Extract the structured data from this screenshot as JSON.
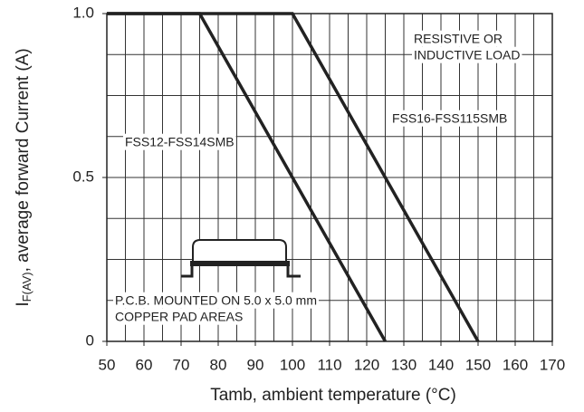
{
  "chart_data": {
    "type": "line",
    "xlabel": "Tamb, ambient temperature (°C)",
    "ylabel": [
      "I",
      "F(AV)",
      ", average forward Current (A)"
    ],
    "xlim": [
      50,
      170
    ],
    "ylim": [
      0,
      1
    ],
    "xticks": [
      50,
      60,
      70,
      80,
      90,
      100,
      110,
      120,
      130,
      140,
      150,
      160,
      170
    ],
    "yticks": [
      0,
      0.5,
      {
        "value": 1,
        "label": "1.0"
      }
    ],
    "xgrid": [
      50,
      55,
      60,
      65,
      70,
      75,
      80,
      85,
      90,
      95,
      100,
      105,
      110,
      115,
      120,
      125,
      130,
      135,
      140,
      145,
      150,
      155,
      160,
      165,
      170
    ],
    "ygrid": [
      0,
      0.125,
      0.25,
      0.375,
      0.5,
      0.625,
      0.75,
      0.875,
      1
    ],
    "grid": true,
    "series": [
      {
        "name": "FSS12-FSS14SMB",
        "color": "#222222",
        "x": [
          50,
          75,
          125
        ],
        "values": [
          1,
          1,
          0
        ]
      },
      {
        "name": "FSS16-FSS115SMB",
        "color": "#222222",
        "x": [
          50,
          100,
          150
        ],
        "values": [
          1,
          1,
          0
        ]
      }
    ],
    "annotations": [
      {
        "lines": [
          "RESISTIVE OR",
          "INDUCTIVE LOAD"
        ]
      },
      {
        "lines": [
          "P.C.B. MOUNTED ON 5.0 x 5.0 mm",
          "COPPER PAD AREAS"
        ]
      }
    ]
  }
}
